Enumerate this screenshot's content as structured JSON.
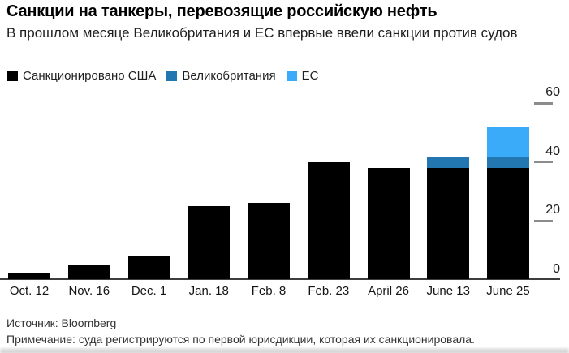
{
  "header": {
    "title": "Санкции на танкеры, перевозящие российскую нефть",
    "subtitle": "В прошлом месяце Великобритания и ЕС впервые ввели санкции против судов"
  },
  "chart_data": {
    "type": "bar",
    "stacked": true,
    "title": "Санкции на танкеры, перевозящие российскую нефть",
    "categories": [
      "Oct. 12",
      "Nov. 16",
      "Dec. 1",
      "Jan. 18",
      "Feb. 8",
      "Feb. 23",
      "April 26",
      "June 13",
      "June 25"
    ],
    "series": [
      {
        "name": "Санкционировано США",
        "color": "#000000",
        "values": [
          2,
          5,
          8,
          25,
          26,
          40,
          38,
          38,
          38
        ]
      },
      {
        "name": "Великобритания",
        "color": "#2277b0",
        "values": [
          0,
          0,
          0,
          0,
          0,
          0,
          0,
          4,
          4
        ]
      },
      {
        "name": "ЕС",
        "color": "#3aabf8",
        "values": [
          0,
          0,
          0,
          0,
          0,
          0,
          0,
          0,
          10
        ]
      }
    ],
    "totals": [
      2,
      5,
      8,
      25,
      26,
      40,
      38,
      42,
      52
    ],
    "yticks": [
      0,
      20,
      40,
      60
    ],
    "ylim": [
      0,
      60
    ],
    "xlabel": "",
    "ylabel": "",
    "grid": false,
    "legend_position": "top",
    "y_axis_side": "right"
  },
  "footer": {
    "source": "Источник: Bloomberg",
    "note": "Примечание: суда регистрируются по первой юрисдикции, которая их санкционировала."
  }
}
